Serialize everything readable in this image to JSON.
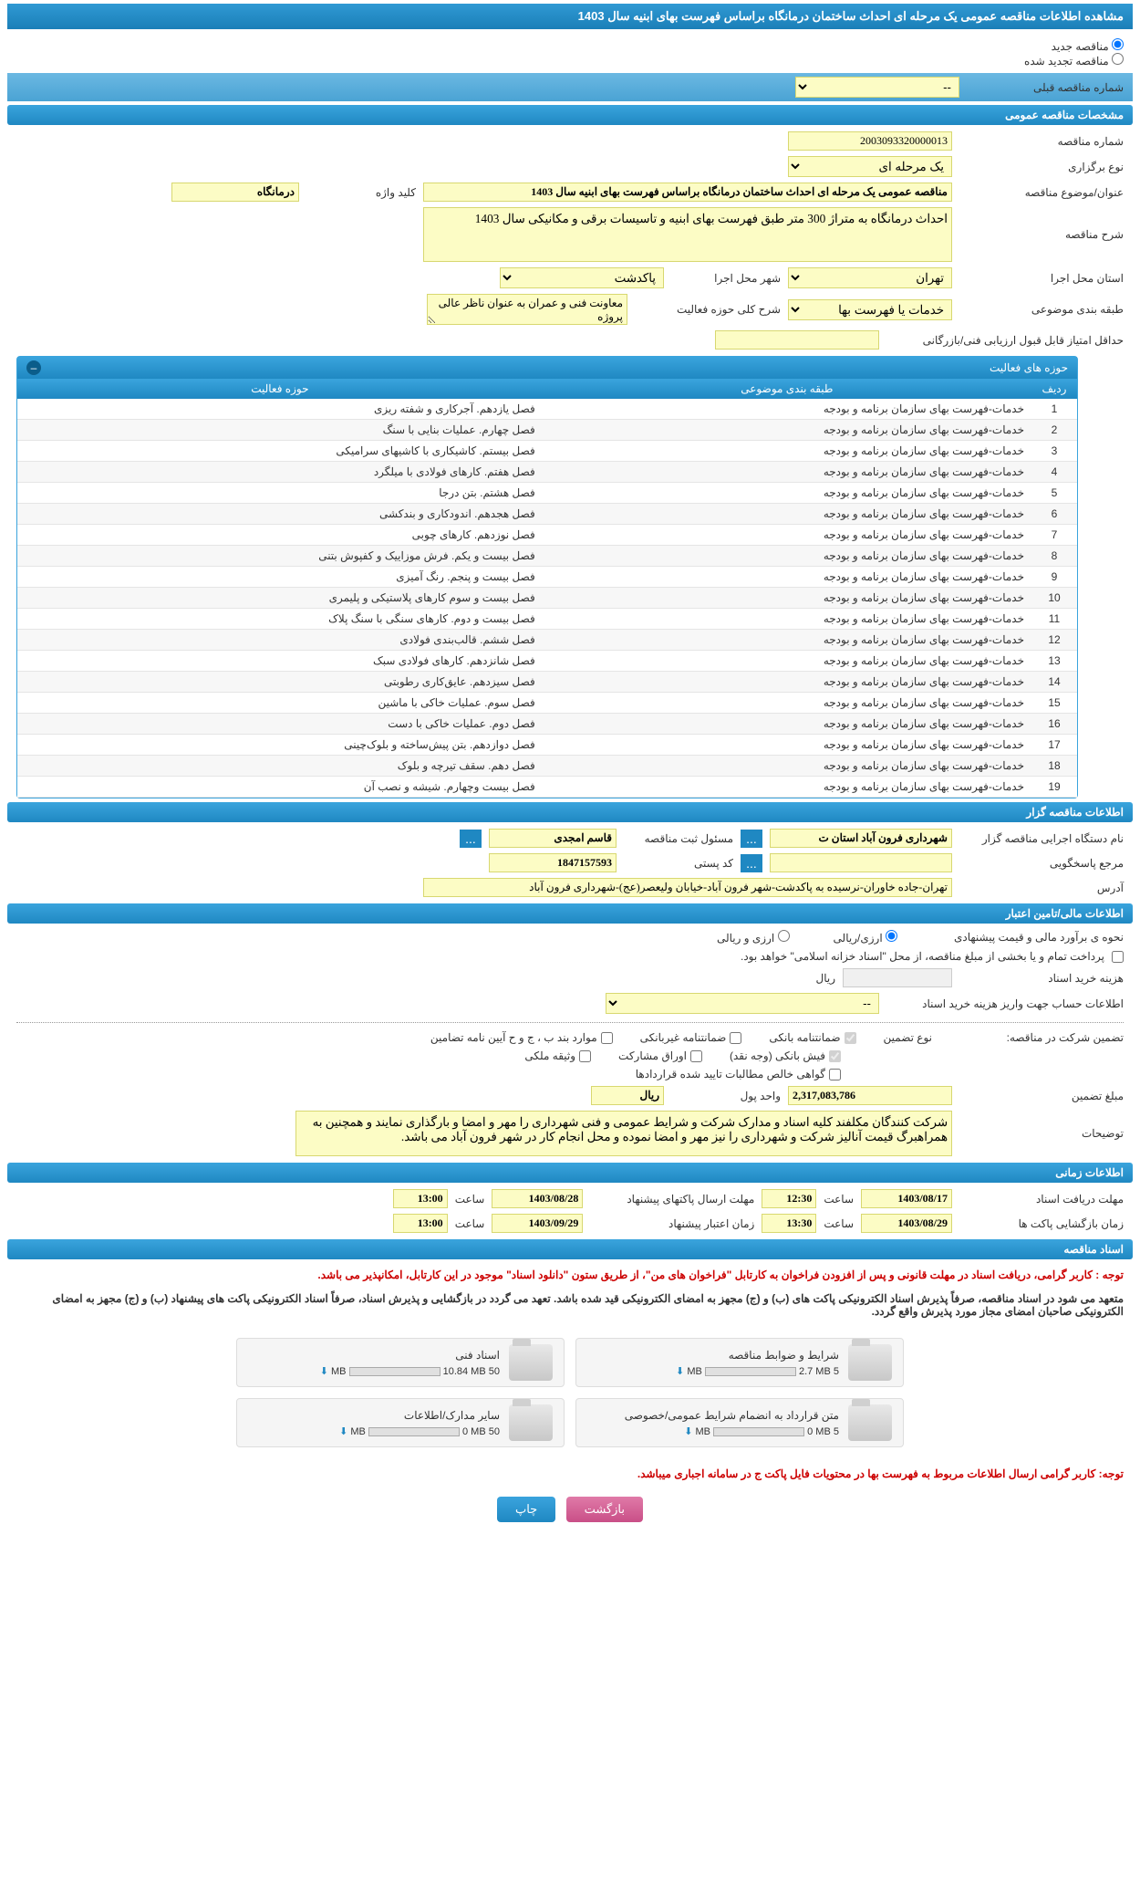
{
  "page_title": "مشاهده اطلاعات مناقصه عمومی یک مرحله ای احداث ساختمان درمانگاه براساس فهرست بهای ابنیه سال 1403",
  "radio_options": {
    "new": "مناقصه جدید",
    "renewed": "مناقصه تجدید شده"
  },
  "prev_tender": {
    "label": "شماره مناقصه قبلی",
    "value": "--"
  },
  "sections": {
    "general": "مشخصات مناقصه عمومی",
    "activity_areas": "حوزه های فعالیت",
    "organizer": "اطلاعات مناقصه گزار",
    "financial": "اطلاعات مالی/تامین اعتبار",
    "timing": "اطلاعات زمانی",
    "documents": "اسناد مناقصه"
  },
  "general_fields": {
    "tender_number_label": "شماره مناقصه",
    "tender_number": "2003093320000013",
    "holding_type_label": "نوع برگزاری",
    "holding_type": "یک مرحله ای",
    "subject_label": "عنوان/موضوع مناقصه",
    "subject": "مناقصه عمومی یک مرحله ای احداث ساختمان درمانگاه براساس فهرست بهای ابنیه سال 1403",
    "keyword_label": "کلید واژه",
    "keyword": "درمانگاه",
    "description_label": "شرح مناقصه",
    "description": "احداث درمانگاه به متراژ 300 متر طبق فهرست بهای ابنیه و تاسیسات برقی و مکانیکی سال 1403",
    "province_label": "استان محل اجرا",
    "province": "تهران",
    "city_label": "شهر محل اجرا",
    "city": "پاکدشت",
    "category_label": "طبقه بندی موضوعی",
    "category": "خدمات یا فهرست بها",
    "activity_scope_label": "شرح کلی حوزه فعالیت",
    "activity_scope": "معاونت فنی و عمران به عنوان ناظر عالی پروژه",
    "min_score_label": "حداقل امتیاز قابل قبول ارزیابی فنی/بازرگانی"
  },
  "activity_table": {
    "col_row": "ردیف",
    "col_category": "طبقه بندی موضوعی",
    "col_activity": "حوزه فعالیت",
    "rows": [
      {
        "n": "1",
        "c": "خدمات-فهرست بهای سازمان برنامه و بودجه",
        "a": "فصل یازدهم. آجرکاری و شفته ریزی"
      },
      {
        "n": "2",
        "c": "خدمات-فهرست بهای سازمان برنامه و بودجه",
        "a": "فصل چهارم. عملیات بنایی با سنگ"
      },
      {
        "n": "3",
        "c": "خدمات-فهرست بهای سازمان برنامه و بودجه",
        "a": "فصل بیستم. کاشیکاری با کاشیهای سرامیکی"
      },
      {
        "n": "4",
        "c": "خدمات-فهرست بهای سازمان برنامه و بودجه",
        "a": "فصل هفتم. کارهای فولادی با میلگرد"
      },
      {
        "n": "5",
        "c": "خدمات-فهرست بهای سازمان برنامه و بودجه",
        "a": "فصل هشتم. بتن درجا"
      },
      {
        "n": "6",
        "c": "خدمات-فهرست بهای سازمان برنامه و بودجه",
        "a": "فصل هجدهم. اندودکاری و بندکشی"
      },
      {
        "n": "7",
        "c": "خدمات-فهرست بهای سازمان برنامه و بودجه",
        "a": "فصل نوزدهم. کارهای چوبی"
      },
      {
        "n": "8",
        "c": "خدمات-فهرست بهای سازمان برنامه و بودجه",
        "a": "فصل بیست و یکم. فرش موزاییک و کفپوش بتنی"
      },
      {
        "n": "9",
        "c": "خدمات-فهرست بهای سازمان برنامه و بودجه",
        "a": "فصل بیست و پنجم. رنگ آمیزی"
      },
      {
        "n": "10",
        "c": "خدمات-فهرست بهای سازمان برنامه و بودجه",
        "a": "فصل بیست و سوم کارهای پلاستیکی و پلیمری"
      },
      {
        "n": "11",
        "c": "خدمات-فهرست بهای سازمان برنامه و بودجه",
        "a": "فصل بیست و دوم. کارهای سنگی با سنگ پلاک"
      },
      {
        "n": "12",
        "c": "خدمات-فهرست بهای سازمان برنامه و بودجه",
        "a": "فصل ششم. قالب‌بندی فولادی"
      },
      {
        "n": "13",
        "c": "خدمات-فهرست بهای سازمان برنامه و بودجه",
        "a": "فصل شانزدهم. کارهای فولادی سبک"
      },
      {
        "n": "14",
        "c": "خدمات-فهرست بهای سازمان برنامه و بودجه",
        "a": "فصل سیزدهم. عایق‌کاری رطوبتی"
      },
      {
        "n": "15",
        "c": "خدمات-فهرست بهای سازمان برنامه و بودجه",
        "a": "فصل سوم. عملیات خاکی با ماشین"
      },
      {
        "n": "16",
        "c": "خدمات-فهرست بهای سازمان برنامه و بودجه",
        "a": "فصل دوم. عملیات خاکی با دست"
      },
      {
        "n": "17",
        "c": "خدمات-فهرست بهای سازمان برنامه و بودجه",
        "a": "فصل دوازدهم. بتن پیش‌ساخته و بلوک‌چینی"
      },
      {
        "n": "18",
        "c": "خدمات-فهرست بهای سازمان برنامه و بودجه",
        "a": "فصل دهم. سقف تیرچه و بلوک"
      },
      {
        "n": "19",
        "c": "خدمات-فهرست بهای سازمان برنامه و بودجه",
        "a": "فصل بیست وچهارم. شیشه و نصب آن"
      }
    ]
  },
  "organizer": {
    "exec_label": "نام دستگاه اجرایی مناقصه گزار",
    "exec_name": "شهرداری فرون آباد استان ت",
    "responsible_label": "مسئول ثبت مناقصه",
    "responsible": "قاسم امجدی",
    "contact_label": "مرجع پاسخگویی",
    "postal_label": "کد پستی",
    "postal": "1847157593",
    "address_label": "آدرس",
    "address": "تهران-جاده خاوران-نرسیده به پاکدشت-شهر فرون آباد-خیابان ولیعصر(عج)-شهرداری فرون آباد"
  },
  "financial": {
    "estimate_label": "نحوه ی برآورد مالی و قیمت پیشنهادی",
    "opt_rial": "ارزی/ریالی",
    "opt_currency": "ارزی و ریالی",
    "payment_note": "پرداخت تمام و یا بخشی از مبلغ مناقصه، از محل \"اسناد خزانه اسلامی\" خواهد بود.",
    "doc_cost_label": "هزینه خرید اسناد",
    "currency_unit": "ریال",
    "account_info_label": "اطلاعات حساب جهت واریز هزینه خرید اسناد",
    "account_value": "--",
    "guarantee_label": "تضمین شرکت در مناقصه:",
    "guarantee_type_label": "نوع تضمین",
    "chk_bank_guarantee": "ضمانتنامه بانکی",
    "chk_nonbank_guarantee": "ضمانتنامه غیربانکی",
    "chk_clause": "موارد بند ب ، ج و ح آیین نامه تضامین",
    "chk_bank_receipt": "فیش بانکی (وجه نقد)",
    "chk_securities": "اوراق مشارکت",
    "chk_property": "وثیقه ملکی",
    "chk_net_claims": "گواهی خالص مطالبات تایید شده قراردادها",
    "guarantee_amount_label": "مبلغ تضمین",
    "guarantee_amount": "2,317,083,786",
    "unit_label": "واحد پول",
    "unit": "ریال",
    "explanation_label": "توضیحات",
    "explanation": "شرکت کنندگان مکلفند کلیه اسناد و مدارک شرکت و شرایط عمومی و فنی شهرداری را مهر و امضا و بارگذاری نمایند و همچنین به همراهبرگ قیمت آنالیز شرکت و شهرداری را نیز مهر و امضا نموده و محل انجام کار در شهر فرون آباد می باشد."
  },
  "timing": {
    "receive_label": "مهلت دریافت اسناد",
    "receive_date": "1403/08/17",
    "time_label": "ساعت",
    "receive_time": "12:30",
    "submit_label": "مهلت ارسال پاکتهای پیشنهاد",
    "submit_date": "1403/08/28",
    "submit_time": "13:00",
    "open_label": "زمان بازگشایی پاکت ها",
    "open_date": "1403/08/29",
    "open_time": "13:30",
    "validity_label": "زمان اعتبار پیشنهاد",
    "validity_date": "1403/09/29",
    "validity_time": "13:00"
  },
  "documents": {
    "note1": "توجه : کاربر گرامی، دریافت اسناد در مهلت قانونی و پس از افزودن فراخوان به کارتابل \"فراخوان های من\"، از طریق ستون \"دانلود اسناد\" موجود در این کارتابل، امکانپذیر می باشد.",
    "note2": "متعهد می شود در اسناد مناقصه، صرفاً پذیرش اسناد الکترونیکی پاکت های (ب) و (ج) مجهز به امضای الکترونیکی قید شده باشد. تعهد می گردد در بازگشایی و پذیرش اسناد، صرفاً اسناد الکترونیکی پاکت های پیشنهاد (ب) و (ج) مجهز به امضای الکترونیکی صاحبان امضای مجاز مورد پذیرش واقع گردد.",
    "files": [
      {
        "name": "شرایط و ضوابط مناقصه",
        "size": "2.7 MB",
        "max": "5 MB",
        "pct": 54
      },
      {
        "name": "اسناد فنی",
        "size": "10.84 MB",
        "max": "50 MB",
        "pct": 22
      },
      {
        "name": "متن قرارداد به انضمام شرایط عمومی/خصوصی",
        "size": "0 MB",
        "max": "5 MB",
        "pct": 0
      },
      {
        "name": "سایر مدارک/اطلاعات",
        "size": "0 MB",
        "max": "50 MB",
        "pct": 0
      }
    ],
    "note3": "توجه: کاربر گرامی ارسال اطلاعات مربوط به فهرست بها در محتویات فایل پاکت ج در سامانه اجباری میباشد."
  },
  "buttons": {
    "back": "بازگشت",
    "print": "چاپ"
  },
  "colors": {
    "header_bg": "#2f99d4",
    "yellow_bg": "#fcfcc5",
    "red_text": "#cc0000"
  }
}
